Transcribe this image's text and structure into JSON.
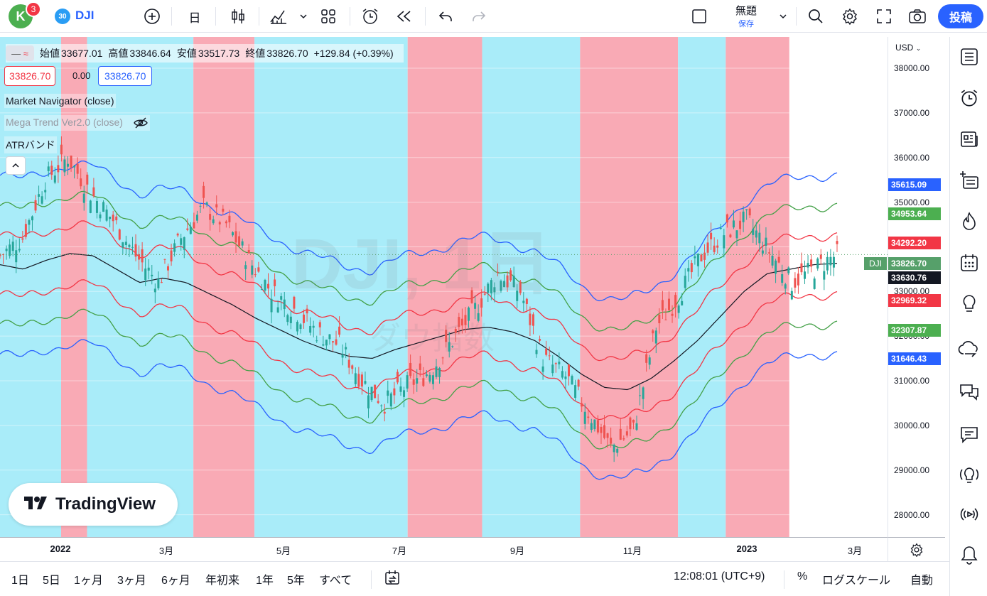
{
  "topbar": {
    "avatar_letter": "K",
    "notification_count": "3",
    "symbol_badge": "30",
    "symbol": "DJI",
    "interval": "日",
    "layout_name": "無題",
    "layout_status": "保存",
    "post_label": "投稿"
  },
  "legend": {
    "ohlc_open_label": "始値",
    "ohlc_open": "33677.01",
    "ohlc_high_label": "高値",
    "ohlc_high": "33846.64",
    "ohlc_low_label": "安値",
    "ohlc_low": "33517.73",
    "ohlc_close_label": "終値",
    "ohlc_close": "33826.70",
    "change": "+129.84 (+0.39%)",
    "bid": "33826.70",
    "spread": "0.00",
    "ask": "33826.70",
    "studies": [
      "Market Navigator (close)",
      "Mega Trend Ver2.0 (close)",
      "ATRバンド"
    ]
  },
  "watermark": {
    "symbol": "DJI, 1日",
    "description": "ダウ指数"
  },
  "logo_text": "TradingView",
  "price_axis": {
    "currency": "USD",
    "ticks": [
      "38000.00",
      "37000.00",
      "36000.00",
      "35000.00",
      "34000.00",
      "33000.00",
      "32000.00",
      "31000.00",
      "30000.00",
      "29000.00",
      "28000.00"
    ],
    "tags": [
      {
        "value": "35615.09",
        "color": "#2962ff"
      },
      {
        "value": "34953.64",
        "color": "#4caf50"
      },
      {
        "value": "34292.20",
        "color": "#f23645"
      },
      {
        "value": "33826.70",
        "color": "#56a06a"
      },
      {
        "value": "33630.76",
        "color": "#131722"
      },
      {
        "value": "32969.32",
        "color": "#f23645"
      },
      {
        "value": "32307.87",
        "color": "#4caf50"
      },
      {
        "value": "31646.43",
        "color": "#2962ff"
      }
    ],
    "dji_tag": "DJI"
  },
  "time_axis": {
    "labels": [
      {
        "text": "2022",
        "bold": true
      },
      {
        "text": "3月",
        "bold": false
      },
      {
        "text": "5月",
        "bold": false
      },
      {
        "text": "7月",
        "bold": false
      },
      {
        "text": "9月",
        "bold": false
      },
      {
        "text": "11月",
        "bold": false
      },
      {
        "text": "2023",
        "bold": true
      },
      {
        "text": "3月",
        "bold": false
      }
    ]
  },
  "bottombar": {
    "ranges": [
      "1日",
      "5日",
      "1ヶ月",
      "3ヶ月",
      "6ヶ月",
      "年初来",
      "1年",
      "5年",
      "すべて"
    ],
    "time": "12:08:01 (UTC+9)",
    "percent": "%",
    "log_scale": "ログスケール",
    "auto": "自動"
  },
  "colors": {
    "bg_cyan": "#a9ecf9",
    "bg_pink": "#f9aab5",
    "candle_up": "#26a69a",
    "candle_down": "#ef5350",
    "band_blue": "#2962ff",
    "band_green": "#43a047",
    "band_red": "#f23645",
    "mid_line": "#131722"
  },
  "chart_data": {
    "type": "candlestick",
    "symbol": "DJI",
    "ylim": [
      27500,
      38700
    ],
    "x_labels": [
      "2022",
      "3月",
      "5月",
      "7月",
      "9月",
      "11月",
      "2023",
      "3月"
    ],
    "last_close": 33826.7,
    "atr_bands": {
      "mid": [
        33600,
        33500,
        33700,
        33850,
        33800,
        33500,
        33200,
        33300,
        33200,
        32950,
        32700,
        32400,
        32150,
        31900,
        31700,
        31550,
        31500,
        31700,
        31850,
        32000,
        32150,
        32200,
        32100,
        31900,
        31550,
        31150,
        30850,
        30800,
        31050,
        31450,
        31900,
        32450,
        33000,
        33400,
        33500,
        33600,
        33631
      ],
      "upper_blue_offset": 2000,
      "upper_green_offset": 1320,
      "upper_red_offset": 660
    },
    "closes": [
      33800,
      34200,
      35500,
      36000,
      35200,
      34600,
      33800,
      33200,
      34200,
      34900,
      34500,
      33700,
      33000,
      32600,
      32100,
      31800,
      31000,
      30500,
      30900,
      31200,
      31900,
      32600,
      33400,
      33000,
      31500,
      31100,
      30300,
      29500,
      29900,
      32200,
      32900,
      33800,
      34300,
      34600,
      33900,
      33200,
      33500,
      33827
    ],
    "shading_segments": [
      {
        "from": 0,
        "to": 0.073,
        "color": "cyan"
      },
      {
        "from": 0.073,
        "to": 0.104,
        "color": "pink"
      },
      {
        "from": 0.104,
        "to": 0.231,
        "color": "cyan"
      },
      {
        "from": 0.231,
        "to": 0.304,
        "color": "pink"
      },
      {
        "from": 0.304,
        "to": 0.487,
        "color": "cyan"
      },
      {
        "from": 0.487,
        "to": 0.576,
        "color": "pink"
      },
      {
        "from": 0.576,
        "to": 0.693,
        "color": "cyan"
      },
      {
        "from": 0.693,
        "to": 0.81,
        "color": "pink"
      },
      {
        "from": 0.81,
        "to": 0.867,
        "color": "cyan"
      },
      {
        "from": 0.867,
        "to": 0.943,
        "color": "pink"
      },
      {
        "from": 0.943,
        "to": 1.0,
        "color": "white"
      }
    ]
  }
}
